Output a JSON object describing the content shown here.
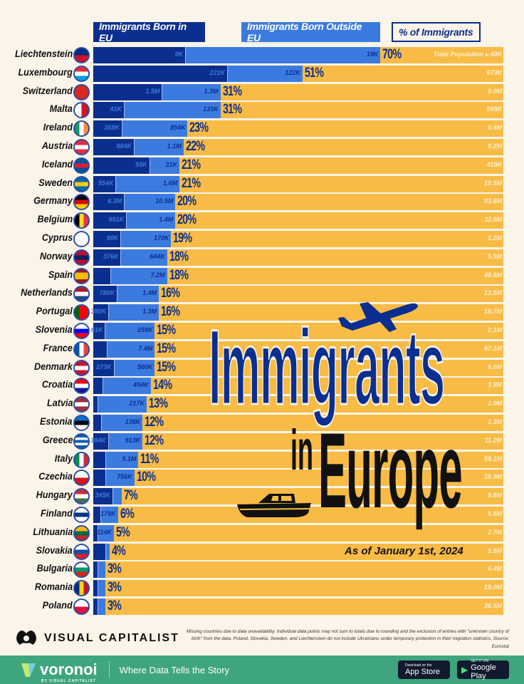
{
  "legend": {
    "eu": "Immigrants Born in EU",
    "non_eu": "Immigrants Born Outside EU",
    "pct": "% of Immigrants",
    "total_population": "Total Population ▸"
  },
  "colors": {
    "eu": "#0b2f8e",
    "non_eu": "#3b7be0",
    "population": "#f8bb45",
    "background": "#faf4e9"
  },
  "title": {
    "line1": "Immigrants",
    "in": "in",
    "line2": "Europe",
    "date": "As of January 1st, 2024"
  },
  "chart_data": {
    "type": "bar",
    "stacked": true,
    "orientation": "horizontal",
    "xlim": [
      0,
      100
    ],
    "countries": [
      {
        "name": "Liechtenstein",
        "eu": "9K",
        "non_eu": "19K",
        "pct": 70,
        "pop": "40K",
        "eu_share": 0.32,
        "flag": {
          "dir": "h",
          "c": [
            "#002b7f",
            "#ce1126"
          ]
        }
      },
      {
        "name": "Luxembourg",
        "eu": "221K",
        "non_eu": "122K",
        "pct": 51,
        "pop": "673K",
        "eu_share": 0.64,
        "flag": {
          "dir": "h",
          "c": [
            "#ed2939",
            "#ffffff",
            "#00a1de"
          ]
        }
      },
      {
        "name": "Switzerland",
        "eu": "1.5M",
        "non_eu": "1.3M",
        "pct": 31,
        "pop": "9.0M",
        "eu_share": 0.54,
        "flag": {
          "dir": "h",
          "c": [
            "#da291c"
          ]
        }
      },
      {
        "name": "Malta",
        "eu": "41K",
        "non_eu": "133K",
        "pct": 31,
        "pop": "565K",
        "eu_share": 0.24,
        "flag": {
          "dir": "v",
          "c": [
            "#ffffff",
            "#cf142b"
          ]
        }
      },
      {
        "name": "Ireland",
        "eu": "358K",
        "non_eu": "854K",
        "pct": 23,
        "pop": "5.4M",
        "eu_share": 0.3,
        "flag": {
          "dir": "v",
          "c": [
            "#169b62",
            "#ffffff",
            "#ff883e"
          ]
        }
      },
      {
        "name": "Austria",
        "eu": "884K",
        "non_eu": "1.1M",
        "pct": 22,
        "pop": "9.2M",
        "eu_share": 0.45,
        "flag": {
          "dir": "h",
          "c": [
            "#ed2939",
            "#ffffff",
            "#ed2939"
          ]
        }
      },
      {
        "name": "Iceland",
        "eu": "58K",
        "non_eu": "31K",
        "pct": 21,
        "pop": "419K",
        "eu_share": 0.65,
        "flag": {
          "dir": "h",
          "c": [
            "#02529c",
            "#dc1e35",
            "#02529c"
          ]
        }
      },
      {
        "name": "Sweden",
        "eu": "554K",
        "non_eu": "1.6M",
        "pct": 21,
        "pop": "10.5M",
        "eu_share": 0.26,
        "flag": {
          "dir": "h",
          "c": [
            "#006aa7",
            "#fecc00",
            "#006aa7"
          ]
        }
      },
      {
        "name": "Germany",
        "eu": "6.3M",
        "non_eu": "10.5M",
        "pct": 20,
        "pop": "83.6M",
        "eu_share": 0.375,
        "flag": {
          "dir": "h",
          "c": [
            "#000000",
            "#dd0000",
            "#ffce00"
          ]
        }
      },
      {
        "name": "Belgium",
        "eu": "951K",
        "non_eu": "1.4M",
        "pct": 20,
        "pop": "11.8M",
        "eu_share": 0.4,
        "flag": {
          "dir": "v",
          "c": [
            "#000000",
            "#fdda24",
            "#ef3340"
          ]
        }
      },
      {
        "name": "Cyprus",
        "eu": "90K",
        "non_eu": "170K",
        "pct": 19,
        "pop": "1.2M",
        "eu_share": 0.35,
        "flag": {
          "dir": "h",
          "c": [
            "#ffffff"
          ]
        }
      },
      {
        "name": "Norway",
        "eu": "376K",
        "non_eu": "644K",
        "pct": 18,
        "pop": "5.5M",
        "eu_share": 0.37,
        "flag": {
          "dir": "h",
          "c": [
            "#ba0c2f",
            "#00205b",
            "#ba0c2f"
          ]
        }
      },
      {
        "name": "Spain",
        "eu": "",
        "non_eu": "7.2M",
        "pct": 18,
        "pop": "48.6M",
        "eu_share": 0.23,
        "flag": {
          "dir": "h",
          "c": [
            "#aa151b",
            "#f1bf00",
            "#f1bf00",
            "#aa151b"
          ]
        }
      },
      {
        "name": "Netherlands",
        "eu": "780K",
        "non_eu": "1.4M",
        "pct": 16,
        "pop": "13.5M",
        "eu_share": 0.36,
        "flag": {
          "dir": "h",
          "c": [
            "#ae1c28",
            "#ffffff",
            "#21468b"
          ]
        }
      },
      {
        "name": "Portugal",
        "eu": "380K",
        "non_eu": "1.3M",
        "pct": 16,
        "pop": "10.7M",
        "eu_share": 0.23,
        "flag": {
          "dir": "v",
          "c": [
            "#006600",
            "#ff0000",
            "#ff0000"
          ]
        }
      },
      {
        "name": "Slovenia",
        "eu": "61K",
        "non_eu": "259K",
        "pct": 15,
        "pop": "2.1M",
        "eu_share": 0.19,
        "flag": {
          "dir": "h",
          "c": [
            "#ffffff",
            "#0000ff",
            "#ff0000"
          ]
        }
      },
      {
        "name": "France",
        "eu": "",
        "non_eu": "7.4M",
        "pct": 15,
        "pop": "67.1M",
        "eu_share": 0.22,
        "flag": {
          "dir": "v",
          "c": [
            "#0055a4",
            "#ffffff",
            "#ef4135"
          ]
        }
      },
      {
        "name": "Denmark",
        "eu": "273K",
        "non_eu": "560K",
        "pct": 15,
        "pop": "6.0M",
        "eu_share": 0.33,
        "flag": {
          "dir": "h",
          "c": [
            "#c8102e",
            "#ffffff",
            "#c8102e"
          ]
        }
      },
      {
        "name": "Croatia",
        "eu": "",
        "non_eu": "454K",
        "pct": 14,
        "pop": "3.9M",
        "eu_share": 0.16,
        "flag": {
          "dir": "h",
          "c": [
            "#ff0000",
            "#ffffff",
            "#171796"
          ]
        }
      },
      {
        "name": "Latvia",
        "eu": "",
        "non_eu": "217K",
        "pct": 13,
        "pop": "1.9M",
        "eu_share": 0.08,
        "flag": {
          "dir": "h",
          "c": [
            "#9e3039",
            "#ffffff",
            "#9e3039"
          ]
        }
      },
      {
        "name": "Estonia",
        "eu": "",
        "non_eu": "138K",
        "pct": 12,
        "pop": "1.3M",
        "eu_share": 0.16,
        "flag": {
          "dir": "h",
          "c": [
            "#0072ce",
            "#000000",
            "#ffffff"
          ]
        }
      },
      {
        "name": "Greece",
        "eu": "384K",
        "non_eu": "913K",
        "pct": 12,
        "pop": "11.2M",
        "eu_share": 0.3,
        "flag": {
          "dir": "h",
          "c": [
            "#0d5eaf",
            "#ffffff",
            "#0d5eaf",
            "#ffffff",
            "#0d5eaf"
          ]
        }
      },
      {
        "name": "Italy",
        "eu": "",
        "non_eu": "5.1M",
        "pct": 11,
        "pop": "59.1M",
        "eu_share": 0.27,
        "flag": {
          "dir": "v",
          "c": [
            "#009246",
            "#ffffff",
            "#ce2b37"
          ]
        }
      },
      {
        "name": "Czechia",
        "eu": "",
        "non_eu": "756K",
        "pct": 10,
        "pop": "10.9M",
        "eu_share": 0.3,
        "flag": {
          "dir": "h",
          "c": [
            "#ffffff",
            "#d7141a"
          ]
        }
      },
      {
        "name": "Hungary",
        "eu": "345K",
        "non_eu": "",
        "pct": 7,
        "pop": "9.8M",
        "eu_share": 0.67,
        "flag": {
          "dir": "h",
          "c": [
            "#ce2939",
            "#ffffff",
            "#477050"
          ]
        }
      },
      {
        "name": "Finland",
        "eu": "",
        "non_eu": "179K",
        "pct": 6,
        "pop": "5.5M",
        "eu_share": 0.3,
        "flag": {
          "dir": "h",
          "c": [
            "#ffffff",
            "#003580",
            "#ffffff"
          ]
        }
      },
      {
        "name": "Lithuania",
        "eu": "",
        "non_eu": "114K",
        "pct": 5,
        "pop": "2.7M",
        "eu_share": 0.2,
        "flag": {
          "dir": "h",
          "c": [
            "#fdb913",
            "#006a44",
            "#c1272d"
          ]
        }
      },
      {
        "name": "Slovakia",
        "eu": "",
        "non_eu": "",
        "pct": 4,
        "pop": "5.5M",
        "eu_share": 0.75,
        "flag": {
          "dir": "h",
          "c": [
            "#ffffff",
            "#0b4ea2",
            "#ee1c25"
          ]
        }
      },
      {
        "name": "Bulgaria",
        "eu": "",
        "non_eu": "",
        "pct": 3,
        "pop": "6.4M",
        "eu_share": 0.33,
        "flag": {
          "dir": "h",
          "c": [
            "#ffffff",
            "#00966e",
            "#d62612"
          ]
        }
      },
      {
        "name": "Romania",
        "eu": "",
        "non_eu": "",
        "pct": 3,
        "pop": "19.0M",
        "eu_share": 0.33,
        "flag": {
          "dir": "v",
          "c": [
            "#002b7f",
            "#fcd116",
            "#ce1126"
          ]
        }
      },
      {
        "name": "Poland",
        "eu": "",
        "non_eu": "",
        "pct": 3,
        "pop": "36.5M",
        "eu_share": 0.33,
        "flag": {
          "dir": "h",
          "c": [
            "#ffffff",
            "#dc143c"
          ]
        }
      }
    ]
  },
  "footer": {
    "brand": "VISUAL CAPITALIST",
    "note": "Missing countries due to data unavailability. Individual data points may not sum to totals due to rounding and the exclusion of entries with \"unknown country of birth\" from the data. Poland, Slovakia, Sweden, and Liechtenstein do not include Ukrainians under temporary protection in their migration statistics. Source: Eurostat",
    "voronoi": "voronoi",
    "voronoi_by": "BY VISUAL CAPITALIST",
    "tagline": "Where Data Tells the Story",
    "appstore_small": "Download on the",
    "appstore": "App Store",
    "googleplay_small": "GET IT ON",
    "googleplay": "Google Play"
  }
}
